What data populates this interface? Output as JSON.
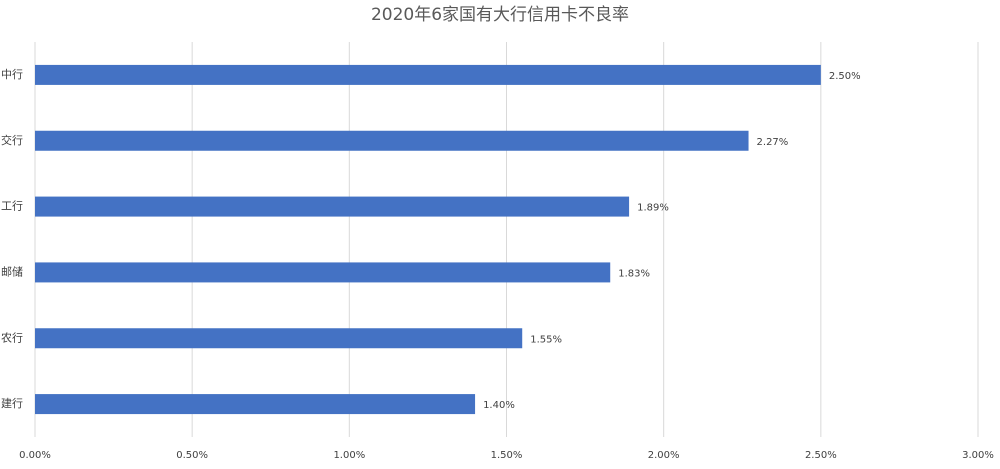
{
  "chart_data": {
    "type": "bar",
    "orientation": "horizontal",
    "title": "2020年6家国有大行信用卡不良率",
    "categories": [
      "中行",
      "交行",
      "工行",
      "邮储",
      "农行",
      "建行"
    ],
    "values": [
      2.5,
      2.27,
      1.89,
      1.83,
      1.55,
      1.4
    ],
    "value_labels": [
      "2.50%",
      "2.27%",
      "1.89%",
      "1.83%",
      "1.55%",
      "1.40%"
    ],
    "color": "#4472c4",
    "xlim": [
      0,
      3
    ],
    "xticks": [
      {
        "value": 0,
        "label": "0.00%"
      },
      {
        "value": 0.5,
        "label": "0.50%"
      },
      {
        "value": 1,
        "label": "1.00%"
      },
      {
        "value": 1.5,
        "label": "1.50%"
      },
      {
        "value": 2,
        "label": "2.00%"
      },
      {
        "value": 2.5,
        "label": "2.50%"
      },
      {
        "value": 3,
        "label": "3.00%"
      }
    ],
    "grid": true
  }
}
